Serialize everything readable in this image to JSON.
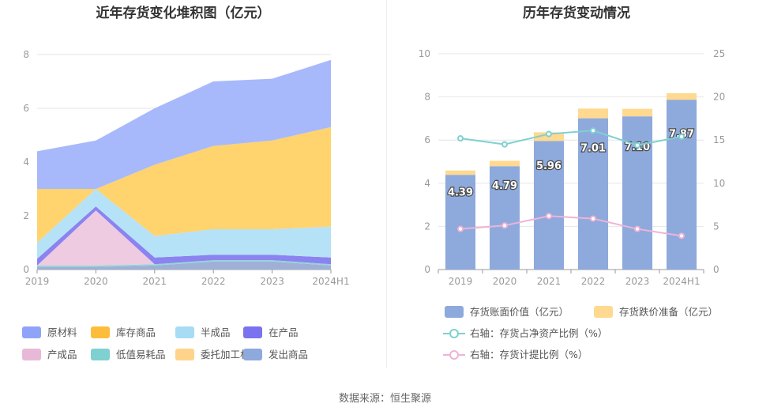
{
  "left_chart": {
    "title": "近年存货变化堆积图（亿元）",
    "chart_data": {
      "type": "area",
      "stacked": true,
      "categories": [
        "2019",
        "2020",
        "2021",
        "2022",
        "2023",
        "2024H1"
      ],
      "ylim": [
        0,
        8
      ],
      "yticks": [
        0,
        2,
        4,
        6,
        8
      ],
      "series": [
        {
          "name": "发出商品",
          "color": "#9fb0d6",
          "values": [
            0.1,
            0.1,
            0.15,
            0.3,
            0.3,
            0.15
          ]
        },
        {
          "name": "委托加工材料",
          "color": "#ffd98e",
          "values": [
            0.0,
            0.0,
            0.0,
            0.0,
            0.0,
            0.0
          ]
        },
        {
          "name": "低值易耗品",
          "color": "#8fd6d6",
          "values": [
            0.05,
            0.05,
            0.05,
            0.05,
            0.05,
            0.05
          ]
        },
        {
          "name": "产成品",
          "color": "#eecbe1",
          "values": [
            0.0,
            2.05,
            0.0,
            0.0,
            0.0,
            0.0
          ]
        },
        {
          "name": "在产品",
          "color": "#8b83f0",
          "values": [
            0.25,
            0.15,
            0.25,
            0.2,
            0.2,
            0.25
          ]
        },
        {
          "name": "半成品",
          "color": "#b6e2f8",
          "values": [
            0.6,
            0.65,
            0.8,
            0.95,
            0.95,
            1.15
          ]
        },
        {
          "name": "库存商品",
          "color": "#ffd36e",
          "values": [
            2.0,
            0.0,
            2.65,
            3.1,
            3.3,
            3.7
          ]
        },
        {
          "name": "原材料",
          "color": "#a7b9fb",
          "values": [
            1.4,
            1.8,
            2.1,
            2.4,
            2.3,
            2.5
          ]
        }
      ],
      "legend": [
        {
          "name": "原材料",
          "color": "#8fa4f8"
        },
        {
          "name": "库存商品",
          "color": "#fdbd3c"
        },
        {
          "name": "半成品",
          "color": "#a8dcf5"
        },
        {
          "name": "在产品",
          "color": "#7a72ee"
        },
        {
          "name": "产成品",
          "color": "#e8b9d6"
        },
        {
          "name": "低值易耗品",
          "color": "#7fd0d0"
        },
        {
          "name": "委托加工材料",
          "color": "#ffd48a"
        },
        {
          "name": "发出商品",
          "color": "#8ea9dc"
        }
      ],
      "legend_position": "bottom"
    }
  },
  "right_chart": {
    "title": "历年存货变动情况",
    "chart_data": {
      "type": "bar",
      "stacked": true,
      "categories": [
        "2019",
        "2020",
        "2021",
        "2022",
        "2023",
        "2024H1"
      ],
      "ylim": [
        0,
        10
      ],
      "yticks": [
        0,
        2,
        4,
        6,
        8,
        10
      ],
      "y2lim": [
        0,
        25
      ],
      "y2ticks": [
        0,
        5,
        10,
        15,
        20,
        25
      ],
      "series": [
        {
          "name": "存货账面价值（亿元）",
          "color": "#8eaadc",
          "axis": "left",
          "type": "bar",
          "values": [
            4.39,
            4.79,
            5.96,
            7.01,
            7.1,
            7.87
          ],
          "labels": [
            "4.39",
            "4.79",
            "5.96",
            "7.01",
            "7.10",
            "7.87"
          ]
        },
        {
          "name": "存货跌价准备（亿元）",
          "color": "#ffd98f",
          "axis": "left",
          "type": "bar",
          "values": [
            0.2,
            0.25,
            0.4,
            0.45,
            0.35,
            0.3
          ]
        },
        {
          "name": "右轴：存货占净资产比例（%）",
          "color": "#7fd0d0",
          "axis": "right",
          "type": "line",
          "values": [
            15.2,
            14.5,
            15.7,
            16.1,
            14.4,
            15.4
          ]
        },
        {
          "name": "右轴：存货计提比例（%）",
          "color": "#eeb3d8",
          "axis": "right",
          "type": "line",
          "values": [
            4.7,
            5.1,
            6.2,
            5.9,
            4.7,
            3.9
          ]
        }
      ],
      "legend_position": "bottom"
    }
  },
  "source": "数据来源：恒生聚源"
}
